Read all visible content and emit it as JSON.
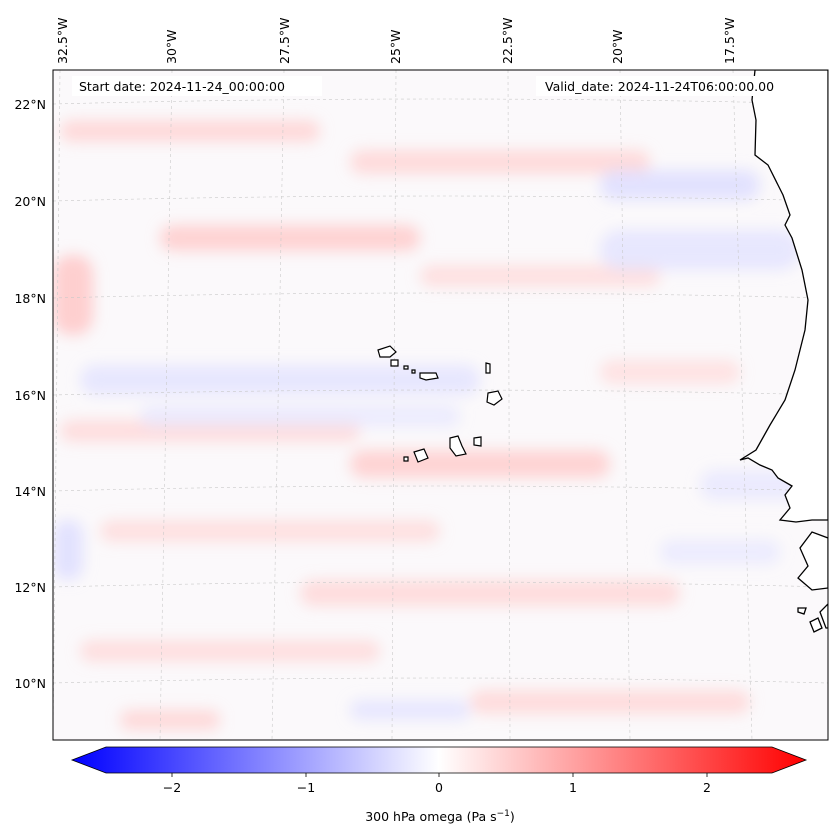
{
  "header": {
    "start_date": "Start date: 2024-11-24_00:00:00",
    "valid_date": "Valid_date: 2024-11-24T06:00:00.00"
  },
  "axes": {
    "longitude_labels": [
      "32.5°W",
      "30°W",
      "27.5°W",
      "25°W",
      "22.5°W",
      "20°W",
      "17.5°W"
    ],
    "latitude_labels": [
      "22°N",
      "20°N",
      "18°N",
      "16°N",
      "14°N",
      "12°N",
      "10°N"
    ]
  },
  "colorbar": {
    "tick_labels": [
      "−2",
      "−1",
      "0",
      "1",
      "2"
    ],
    "label_text": "300 hPa omega (Pa s",
    "label_exp": "−1",
    "label_close": ")",
    "range": [
      -2.6,
      2.6
    ],
    "colormap": "bwr"
  },
  "colors": {
    "negative": "#0000ff",
    "positive": "#ff0000",
    "neutral": "#ffffff",
    "coast": "#000000"
  }
}
